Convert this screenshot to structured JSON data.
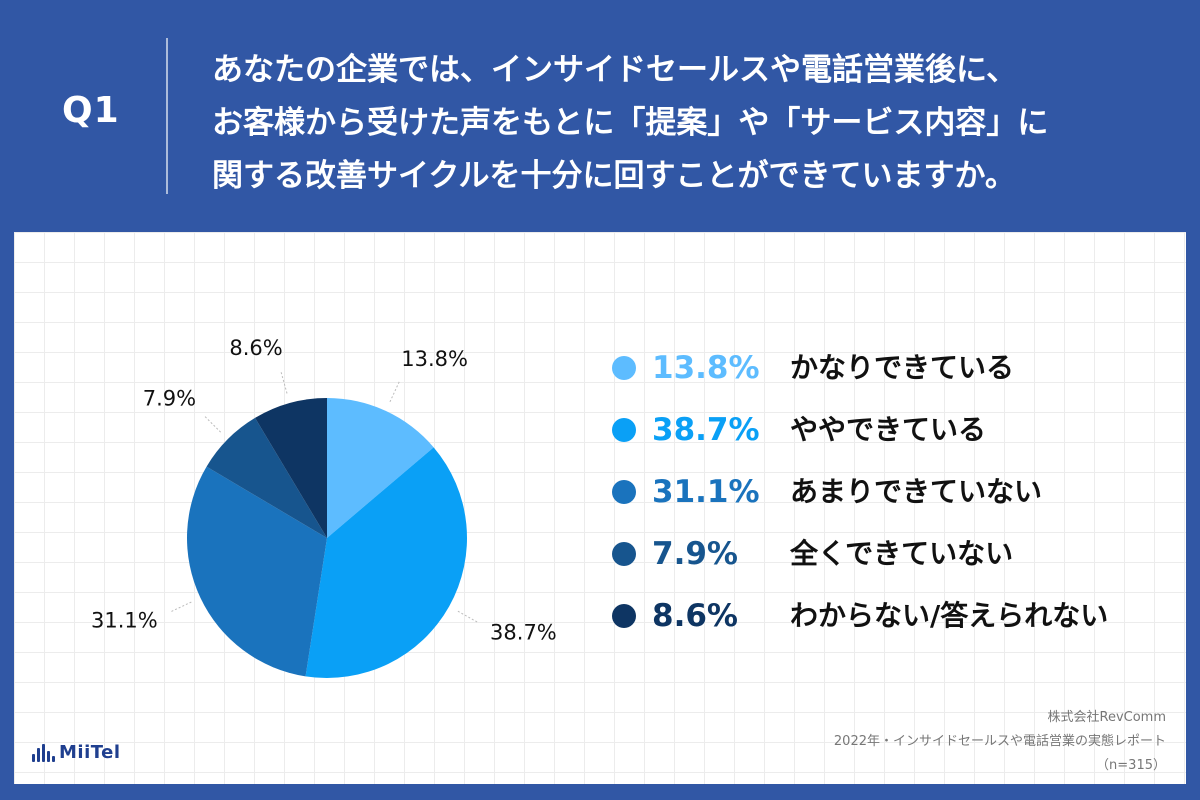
{
  "header": {
    "q_label": "Q1",
    "question_lines": [
      "あなたの企業では、インサイドセールスや電話営業後に、",
      "お客様から受けた声をもとに「提案」や「サービス内容」に",
      "関する改善サイクルを十分に回すことができていますか。"
    ]
  },
  "chart_data": {
    "type": "pie",
    "categories": [
      "かなりできている",
      "ややできている",
      "あまりできていない",
      "全くできていない",
      "わからない/答えられない"
    ],
    "values": [
      13.8,
      38.7,
      31.1,
      7.9,
      8.6
    ],
    "slice_labels": [
      "13.8%",
      "38.7%",
      "31.1%",
      "7.9%",
      "8.6%"
    ],
    "colors": [
      "#5dbcff",
      "#0aa0f6",
      "#1a73bd",
      "#17558e",
      "#0e3563"
    ],
    "start_angle_deg": 0,
    "direction": "clockwise",
    "legend_position": "right"
  },
  "legend": {
    "items": [
      {
        "pct": "13.8%",
        "label": "かなりできている",
        "color": "#5dbcff"
      },
      {
        "pct": "38.7%",
        "label": "ややできている",
        "color": "#0aa0f6"
      },
      {
        "pct": "31.1%",
        "label": "あまりできていない",
        "color": "#1a73bd"
      },
      {
        "pct": "7.9%",
        "label": "全くできていない",
        "color": "#17558e"
      },
      {
        "pct": "8.6%",
        "label": "わからない/答えられない",
        "color": "#0e3563"
      }
    ]
  },
  "footer": {
    "logo_text": "MiiTel",
    "credit_lines": [
      "株式会社RevComm",
      "2022年・インサイドセールスや電話営業の実態レポート",
      "（n=315）"
    ]
  }
}
